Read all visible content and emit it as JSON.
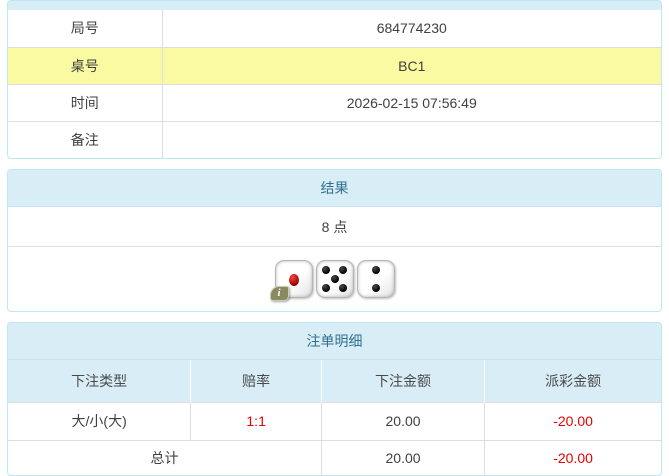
{
  "colors": {
    "panel_border": "#bce8f1",
    "heading_bg": "#d9edf7",
    "heading_text": "#31708f",
    "row_divider": "#dddddd",
    "highlight_row_bg": "#fafaa2",
    "negative_text": "#e60000"
  },
  "game_info": {
    "rows": [
      {
        "label": "局号",
        "value": "684774230",
        "highlight": false
      },
      {
        "label": "桌号",
        "value": "BC1",
        "highlight": true
      },
      {
        "label": "时间",
        "value": "2026-02-15 07:56:49",
        "highlight": false
      },
      {
        "label": "备注",
        "value": "",
        "highlight": false
      }
    ]
  },
  "result_panel": {
    "title": "结果",
    "points_text": "8 点",
    "dice": [
      {
        "value": 1,
        "pip_color": "red",
        "has_info_badge": true
      },
      {
        "value": 5,
        "pip_color": "black",
        "has_info_badge": false
      },
      {
        "value": 2,
        "pip_color": "black",
        "has_info_badge": false
      }
    ],
    "info_badge_label": "i"
  },
  "bet_details": {
    "title": "注单明细",
    "columns": [
      "下注类型",
      "赔率",
      "下注金额",
      "派彩金额"
    ],
    "rows": [
      {
        "bet_type": "大/小(大)",
        "odds": "1:1",
        "bet_amount": "20.00",
        "payout": "-20.00"
      }
    ],
    "total": {
      "label": "总计",
      "bet_amount": "20.00",
      "payout": "-20.00"
    }
  }
}
